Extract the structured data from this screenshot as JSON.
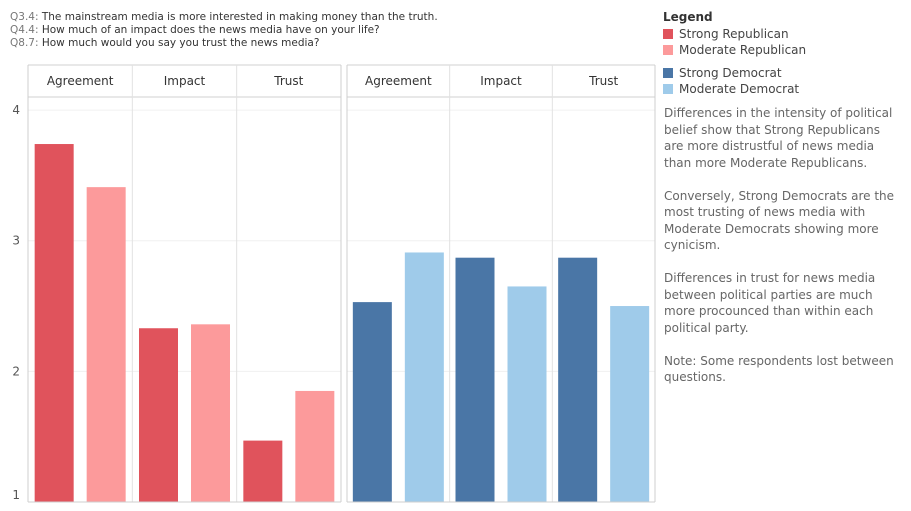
{
  "questions": [
    {
      "code": "Q3.4:",
      "text": "The mainstream media is more interested in making money than the truth."
    },
    {
      "code": "Q4.4:",
      "text": "How much of an impact does the news media have on your life?"
    },
    {
      "code": "Q8.7:",
      "text": "How much would you say you trust the news media?"
    }
  ],
  "legend": {
    "title": "Legend",
    "items": [
      {
        "label": "Strong Republican",
        "color": "#e0535c"
      },
      {
        "label": "Moderate Republican",
        "color": "#fc9a9b"
      },
      {
        "label": "Strong Democrat",
        "color": "#4a76a6"
      },
      {
        "label": "Moderate Democrat",
        "color": "#9fcbea"
      }
    ]
  },
  "notes": [
    "Differences in the intensity of political belief show that Strong Republicans are more distrustful of news media than more Moderate Republicans.",
    "Conversely, Strong Democrats are the most trusting of news media with Moderate Democrats showing more cynicism.",
    "Differences in trust for news media between political parties are much more procounced than within each political party.",
    "Note: Some respondents lost between questions."
  ],
  "chart_data": {
    "type": "bar",
    "ylim": [
      1,
      4.1
    ],
    "yticks": [
      1,
      2,
      3,
      4
    ],
    "grid": true,
    "panels": [
      {
        "party": "Republican",
        "categories": [
          "Agreement",
          "Impact",
          "Trust"
        ],
        "series": [
          {
            "name": "Strong Republican",
            "color": "#e0535c",
            "values": [
              3.74,
              2.33,
              1.47
            ]
          },
          {
            "name": "Moderate Republican",
            "color": "#fc9a9b",
            "values": [
              3.41,
              2.36,
              1.85
            ]
          }
        ]
      },
      {
        "party": "Democrat",
        "categories": [
          "Agreement",
          "Impact",
          "Trust"
        ],
        "series": [
          {
            "name": "Strong Democrat",
            "color": "#4a76a6",
            "values": [
              2.53,
              2.87,
              2.87
            ]
          },
          {
            "name": "Moderate Democrat",
            "color": "#9fcbea",
            "values": [
              2.91,
              2.65,
              2.5
            ]
          }
        ]
      }
    ]
  }
}
